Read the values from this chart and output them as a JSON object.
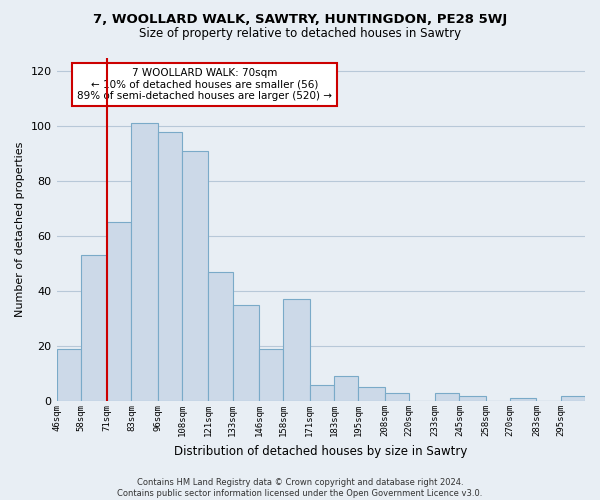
{
  "title": "7, WOOLLARD WALK, SAWTRY, HUNTINGDON, PE28 5WJ",
  "subtitle": "Size of property relative to detached houses in Sawtry",
  "xlabel": "Distribution of detached houses by size in Sawtry",
  "ylabel": "Number of detached properties",
  "bar_color": "#ccd9e8",
  "bar_edgecolor": "#7aaac8",
  "vline_x": 71,
  "vline_color": "#cc0000",
  "annotation_lines": [
    "7 WOOLLARD WALK: 70sqm",
    "← 10% of detached houses are smaller (56)",
    "89% of semi-detached houses are larger (520) →"
  ],
  "annotation_box_edgecolor": "#cc0000",
  "bin_labels": [
    "46sqm",
    "58sqm",
    "71sqm",
    "83sqm",
    "96sqm",
    "108sqm",
    "121sqm",
    "133sqm",
    "146sqm",
    "158sqm",
    "171sqm",
    "183sqm",
    "195sqm",
    "208sqm",
    "220sqm",
    "233sqm",
    "245sqm",
    "258sqm",
    "270sqm",
    "283sqm",
    "295sqm"
  ],
  "bin_edges": [
    46,
    58,
    71,
    83,
    96,
    108,
    121,
    133,
    146,
    158,
    171,
    183,
    195,
    208,
    220,
    233,
    245,
    258,
    270,
    283,
    295
  ],
  "bar_heights": [
    19,
    53,
    65,
    101,
    98,
    91,
    47,
    35,
    19,
    37,
    6,
    9,
    5,
    3,
    0,
    3,
    2,
    0,
    1,
    0,
    2
  ],
  "ylim": [
    0,
    125
  ],
  "yticks": [
    0,
    20,
    40,
    60,
    80,
    100,
    120
  ],
  "footer_lines": [
    "Contains HM Land Registry data © Crown copyright and database right 2024.",
    "Contains public sector information licensed under the Open Government Licence v3.0."
  ],
  "background_color": "#e8eef4",
  "plot_bg_color": "#e8eef4",
  "grid_color": "#b8c8d8"
}
